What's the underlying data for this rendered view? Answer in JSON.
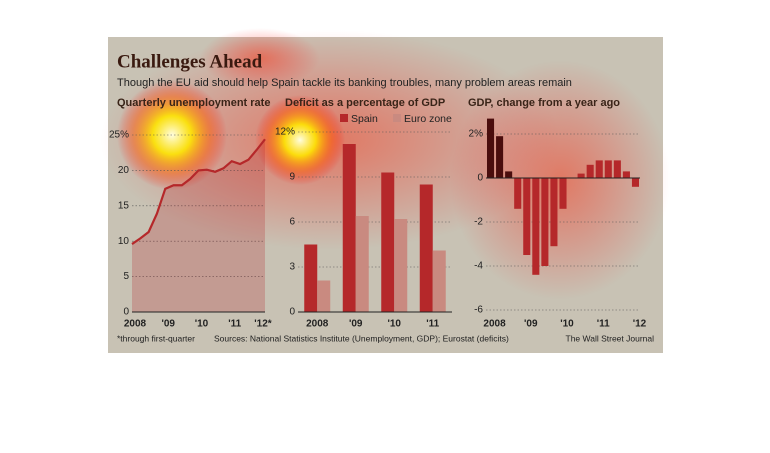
{
  "header": {
    "title": "Challenges Ahead",
    "subtitle": "Though the EU aid should help Spain tackle its banking troubles, many problem areas remain"
  },
  "footer": {
    "note": "*through first-quarter",
    "sources": "Sources: National Statistics Institute (Unemployment, GDP); Eurostat (deficits)",
    "credit": "The Wall Street Journal"
  },
  "chart_data": [
    {
      "type": "area",
      "title": "Quarterly unemployment rate",
      "categories": [
        "2008",
        null,
        null,
        null,
        "'09",
        null,
        null,
        null,
        "'10",
        null,
        null,
        null,
        "'11",
        null,
        null,
        null,
        "'12*"
      ],
      "series": [
        {
          "values": [
            9.6,
            10.4,
            11.3,
            13.9,
            17.4,
            17.9,
            17.9,
            18.8,
            20.0,
            20.1,
            19.8,
            20.3,
            21.3,
            20.9,
            21.5,
            22.9,
            24.4
          ],
          "color": "#b5282a"
        }
      ],
      "ylim": [
        0,
        25
      ],
      "yticks": [
        0,
        5,
        10,
        15,
        20,
        {
          "value": 25,
          "label": "25%"
        }
      ],
      "grid": true
    },
    {
      "type": "bar",
      "title": "Deficit as a percentage of GDP",
      "categories": [
        "2008",
        "'09",
        "'10",
        "'11"
      ],
      "series": [
        {
          "name": "Spain",
          "color": "#b5282a",
          "values": [
            4.5,
            11.2,
            9.3,
            8.5
          ]
        },
        {
          "name": "Euro zone",
          "color": "#c98a80",
          "values": [
            2.1,
            6.4,
            6.2,
            4.1
          ]
        }
      ],
      "ylim": [
        0,
        12
      ],
      "yticks": [
        0,
        3,
        6,
        9,
        {
          "value": 12,
          "label": "12%"
        }
      ],
      "grid": true
    },
    {
      "type": "bar",
      "title": "GDP, change from a year ago",
      "categories": [
        "2008",
        null,
        null,
        null,
        "'09",
        null,
        null,
        null,
        "'10",
        null,
        null,
        null,
        "'11",
        null,
        null,
        null,
        "'12"
      ],
      "series": [
        {
          "values": [
            2.7,
            1.9,
            0.3,
            -1.4,
            -3.5,
            -4.4,
            -4.0,
            -3.1,
            -1.4,
            0.0,
            0.2,
            0.6,
            0.8,
            0.8,
            0.8,
            0.3,
            -0.4
          ],
          "color": "#b5282a",
          "colors": [
            "#4a0d0d",
            "#4a0d0d",
            "#4a0d0d",
            "#b5282a",
            "#b5282a",
            "#b5282a",
            "#b5282a",
            "#b5282a",
            "#b5282a",
            "#b5282a",
            "#b5282a",
            "#b5282a",
            "#b5282a",
            "#b5282a",
            "#b5282a",
            "#b5282a",
            "#b5282a"
          ]
        }
      ],
      "ylim": [
        -6,
        3
      ],
      "yticks": [
        -6,
        -4,
        -2,
        0,
        {
          "value": 2,
          "label": "2%"
        }
      ],
      "grid": true
    }
  ]
}
